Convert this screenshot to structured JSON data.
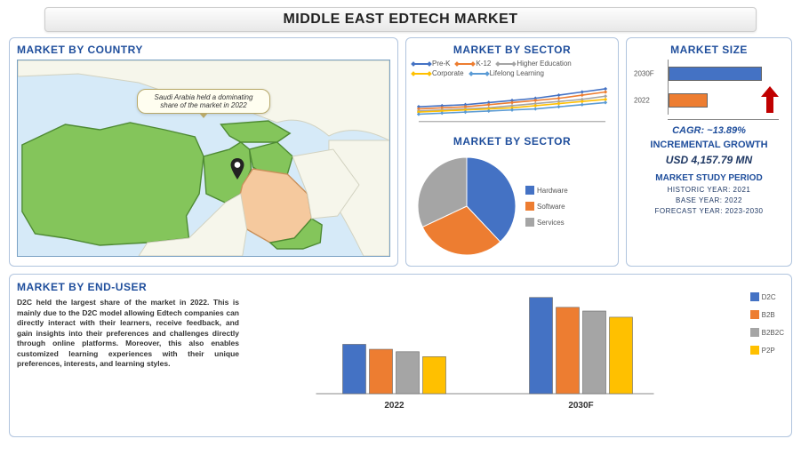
{
  "title": "MIDDLE EAST EDTECH MARKET",
  "map": {
    "title": "MARKET BY COUNTRY",
    "callout": "Saudi Arabia held a dominating share of the market in 2022",
    "water_color": "#d6eaf8",
    "border_color": "#7aa2c4",
    "region_color": "#84c55b",
    "region_stroke": "#4e8a33",
    "highlight_color": "#f5c99e",
    "other_land_color": "#f6f6eb"
  },
  "sector_line": {
    "title": "MARKET BY SECTOR",
    "series": [
      {
        "label": "Pre-K",
        "color": "#4472c4"
      },
      {
        "label": "K-12",
        "color": "#ed7d31"
      },
      {
        "label": "Higher Education",
        "color": "#a5a5a5"
      },
      {
        "label": "Corporate",
        "color": "#ffc000"
      },
      {
        "label": "Lifelong Learning",
        "color": "#5b9bd5"
      }
    ],
    "x_count": 9,
    "values": [
      [
        14,
        15,
        16,
        18,
        20,
        22,
        25,
        28,
        31
      ],
      [
        12,
        13,
        14,
        16,
        18,
        20,
        22,
        25,
        28
      ],
      [
        10,
        11,
        12,
        13,
        15,
        17,
        19,
        21,
        24
      ],
      [
        9,
        10,
        11,
        12,
        13,
        15,
        17,
        19,
        21
      ],
      [
        7,
        8,
        9,
        10,
        11,
        12,
        14,
        16,
        18
      ]
    ],
    "y_max": 35
  },
  "sector_pie": {
    "title": "MARKET BY SECTOR",
    "slices": [
      {
        "label": "Hardware",
        "value": 38,
        "color": "#4472c4"
      },
      {
        "label": "Software",
        "value": 30,
        "color": "#ed7d31"
      },
      {
        "label": "Services",
        "value": 32,
        "color": "#a5a5a5"
      }
    ]
  },
  "market_size": {
    "title": "MARKET SIZE",
    "bars": [
      {
        "label": "2030F",
        "value": 95,
        "color": "#4472c4"
      },
      {
        "label": "2022",
        "value": 40,
        "color": "#ed7d31"
      }
    ],
    "arrow_color": "#c00000",
    "cagr": "CAGR: ~13.89%",
    "incremental_title": "INCREMENTAL GROWTH",
    "incremental_value": "USD 4,157.79 MN",
    "study_title": "MARKET STUDY PERIOD",
    "study_lines": [
      "HISTORIC YEAR: 2021",
      "BASE YEAR: 2022",
      "FORECAST YEAR: 2023-2030"
    ]
  },
  "end_user": {
    "title": "MARKET BY END-USER",
    "text": "D2C held the largest share of the market in 2022. This is mainly due to the D2C model allowing Edtech companies can directly interact with their learners, receive feedback, and gain insights into their preferences and challenges directly through online platforms. Moreover, this also enables customized learning experiences with their unique preferences, interests, and learning styles.",
    "groups": [
      "2022",
      "2030F"
    ],
    "series": [
      {
        "label": "D2C",
        "color": "#4472c4"
      },
      {
        "label": "B2B",
        "color": "#ed7d31"
      },
      {
        "label": "B2B2C",
        "color": "#a5a5a5"
      },
      {
        "label": "P2P",
        "color": "#ffc000"
      }
    ],
    "values": [
      [
        40,
        36,
        34,
        30
      ],
      [
        78,
        70,
        67,
        62
      ]
    ],
    "y_max": 85
  }
}
